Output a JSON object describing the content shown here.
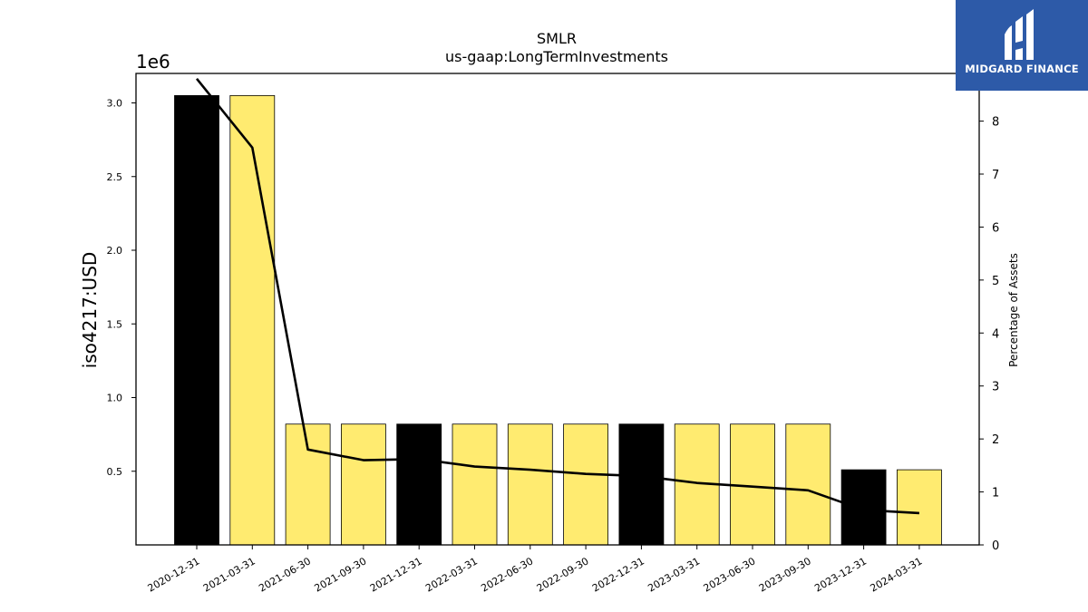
{
  "chart_data": {
    "type": "bar",
    "title": "SMLR",
    "subtitle": "us-gaap:LongTermInvestments",
    "ylabel": "iso4217:USD",
    "y2label": "Percentage of Assets",
    "y_exponent_label": "1e6",
    "ylim": [
      0,
      3200000
    ],
    "y2lim": [
      0,
      8.9
    ],
    "yticks": [
      0.5,
      1.0,
      1.5,
      2.0,
      2.5,
      3.0
    ],
    "y2ticks": [
      0,
      1,
      2,
      3,
      4,
      5,
      6,
      7,
      8
    ],
    "categories": [
      "2020-12-31",
      "2021-03-31",
      "2021-06-30",
      "2021-09-30",
      "2021-12-31",
      "2022-03-31",
      "2022-06-30",
      "2022-09-30",
      "2022-12-31",
      "2023-03-31",
      "2023-06-30",
      "2023-09-30",
      "2023-12-31",
      "2024-03-31"
    ],
    "values": [
      3050000,
      3050000,
      820000,
      820000,
      820000,
      820000,
      820000,
      820000,
      820000,
      820000,
      820000,
      820000,
      510000,
      510000
    ],
    "bar_colors": [
      "#000000",
      "#ffeb70",
      "#ffeb70",
      "#ffeb70",
      "#000000",
      "#ffeb70",
      "#ffeb70",
      "#ffeb70",
      "#000000",
      "#ffeb70",
      "#ffeb70",
      "#ffeb70",
      "#000000",
      "#ffeb70"
    ],
    "line_values": [
      8.8,
      7.5,
      1.8,
      1.6,
      1.62,
      1.48,
      1.42,
      1.34,
      1.3,
      1.17,
      1.1,
      1.03,
      0.66,
      0.6
    ],
    "line_color": "#000000",
    "grid": false
  },
  "logo": {
    "text": "MIDGARD FINANCE",
    "background": "#2d5aa8"
  }
}
